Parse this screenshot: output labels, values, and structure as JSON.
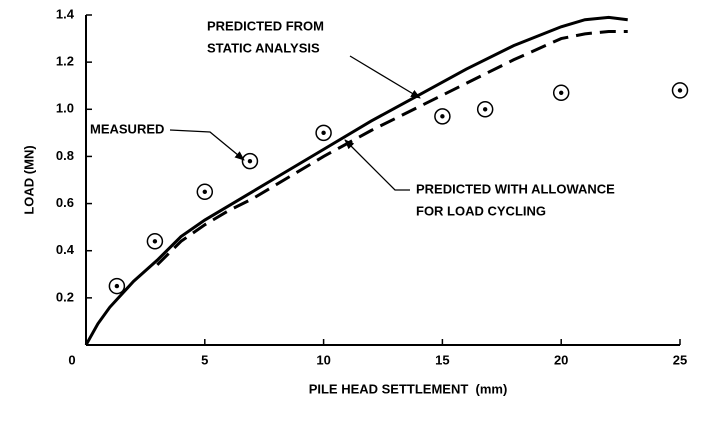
{
  "chart_data": {
    "type": "line",
    "x_label": "PILE HEAD SETTLEMENT  (mm)",
    "y_label": "LOAD (MN)",
    "xlim": [
      0,
      25
    ],
    "ylim": [
      0,
      1.4
    ],
    "xticks": [
      0,
      5,
      10,
      15,
      20,
      25
    ],
    "yticks": [
      0.2,
      0.4,
      0.6,
      0.8,
      {
        "value": 1,
        "label": "1.0"
      },
      1.2,
      1.4
    ],
    "series": [
      {
        "style": "solid",
        "color": "#000000",
        "x": [
          0,
          0.5,
          1,
          2,
          3,
          4,
          5,
          6,
          7,
          8,
          10,
          12,
          14,
          16,
          18,
          20,
          21,
          22,
          22.8
        ],
        "values": [
          0,
          0.09,
          0.16,
          0.27,
          0.36,
          0.46,
          0.53,
          0.59,
          0.65,
          0.71,
          0.83,
          0.95,
          1.06,
          1.17,
          1.27,
          1.35,
          1.38,
          1.39,
          1.38
        ]
      },
      {
        "style": "dashed",
        "color": "#000000",
        "x": [
          3,
          4,
          5,
          6,
          7,
          8,
          10,
          12,
          14,
          16,
          18,
          20,
          21,
          22,
          22.8
        ],
        "values": [
          0.34,
          0.44,
          0.51,
          0.57,
          0.62,
          0.68,
          0.8,
          0.91,
          1.01,
          1.11,
          1.21,
          1.3,
          1.32,
          1.33,
          1.33
        ]
      },
      {
        "style": "markers",
        "color": "#000000",
        "x": [
          1.3,
          2.9,
          5,
          6.9,
          10,
          15,
          16.8,
          20,
          25
        ],
        "values": [
          0.25,
          0.44,
          0.65,
          0.78,
          0.9,
          0.97,
          1.0,
          1.07,
          1.08
        ]
      }
    ],
    "annotations": [
      {
        "lines": [
          "PREDICTED FROM",
          "STATIC ANALYSIS"
        ]
      },
      {
        "lines": [
          "MEASURED"
        ]
      },
      {
        "lines": [
          "PREDICTED WITH ALLOWANCE",
          "FOR LOAD CYCLING"
        ]
      }
    ]
  }
}
